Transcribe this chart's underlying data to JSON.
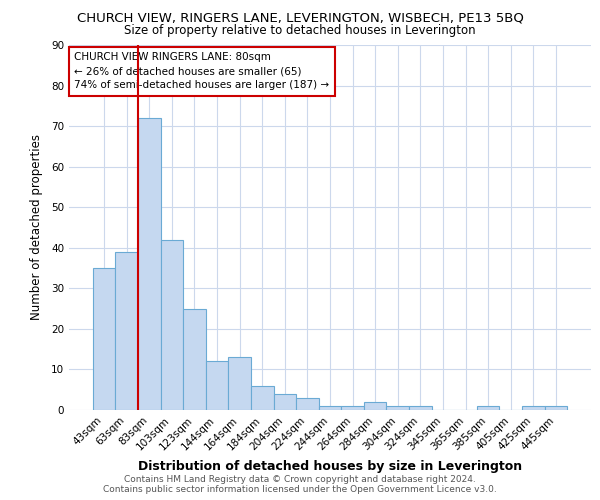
{
  "title": "CHURCH VIEW, RINGERS LANE, LEVERINGTON, WISBECH, PE13 5BQ",
  "subtitle": "Size of property relative to detached houses in Leverington",
  "xlabel": "Distribution of detached houses by size in Leverington",
  "ylabel": "Number of detached properties",
  "categories": [
    "43sqm",
    "63sqm",
    "83sqm",
    "103sqm",
    "123sqm",
    "144sqm",
    "164sqm",
    "184sqm",
    "204sqm",
    "224sqm",
    "244sqm",
    "264sqm",
    "284sqm",
    "304sqm",
    "324sqm",
    "345sqm",
    "365sqm",
    "385sqm",
    "405sqm",
    "425sqm",
    "445sqm"
  ],
  "values": [
    35,
    39,
    72,
    42,
    25,
    12,
    13,
    6,
    4,
    3,
    1,
    1,
    2,
    1,
    1,
    0,
    0,
    1,
    0,
    1,
    1
  ],
  "bar_color": "#c5d8f0",
  "bar_edge_color": "#6aaad4",
  "vline_x_index": 2,
  "vline_color": "#cc0000",
  "annotation_line1": "CHURCH VIEW RINGERS LANE: 80sqm",
  "annotation_line2": "← 26% of detached houses are smaller (65)",
  "annotation_line3": "74% of semi-detached houses are larger (187) →",
  "annotation_box_color": "#cc0000",
  "ylim": [
    0,
    90
  ],
  "yticks": [
    0,
    10,
    20,
    30,
    40,
    50,
    60,
    70,
    80,
    90
  ],
  "footer_line1": "Contains HM Land Registry data © Crown copyright and database right 2024.",
  "footer_line2": "Contains public sector information licensed under the Open Government Licence v3.0.",
  "bg_color": "#ffffff",
  "grid_color": "#ccd8ec",
  "title_fontsize": 9.5,
  "subtitle_fontsize": 8.5,
  "xlabel_fontsize": 9,
  "ylabel_fontsize": 8.5,
  "tick_fontsize": 7.5,
  "annotation_fontsize": 7.5,
  "footer_fontsize": 6.5
}
